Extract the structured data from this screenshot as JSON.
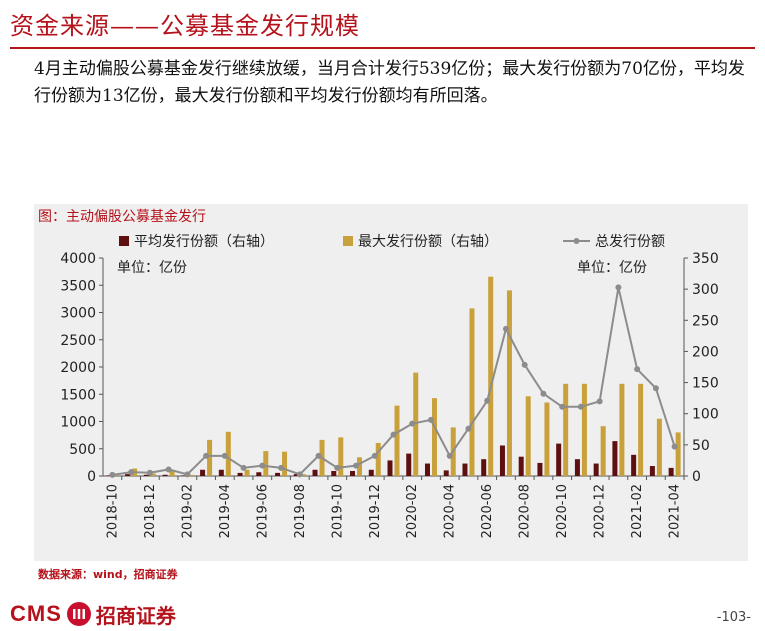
{
  "header": {
    "title": "资金来源——公募基金发行规模",
    "description": "4月主动偏股公募基金发行继续放缓，当月合计发行539亿份；最大发行份额为70亿份，平均发行份额为13亿份，最大发行份额和平均发行份额均有所回落。"
  },
  "figure": {
    "title": "图：主动偏股公募基金发行",
    "source": "数据来源：wind，招商证券"
  },
  "footer": {
    "logo_text": "CMS",
    "logo_mark": "111",
    "logo_cn": "招商证券",
    "page_number": "-103-"
  },
  "colors": {
    "accent": "#b5121b",
    "avg_bar": "#5e0f10",
    "max_bar": "#c9a13c",
    "total_line": "#8c8c8c"
  },
  "chart_data": {
    "type": "bar",
    "unit_left": "单位：亿份",
    "unit_right": "单位：亿份",
    "legend": [
      {
        "name": "平均发行份额（右轴）",
        "kind": "bar",
        "color": "#5e0f10"
      },
      {
        "name": "最大发行份额（右轴）",
        "kind": "bar",
        "color": "#c9a13c"
      },
      {
        "name": "总发行份额",
        "kind": "line",
        "color": "#8c8c8c"
      }
    ],
    "left_axis": {
      "min": 0,
      "max": 4000,
      "ticks": [
        "0",
        "500",
        "1000",
        "1500",
        "2000",
        "2500",
        "3000",
        "3500",
        "4000"
      ]
    },
    "right_axis": {
      "min": 0,
      "max": 350,
      "ticks": [
        "0",
        "50",
        "100",
        "150",
        "200",
        "250",
        "300",
        "350"
      ]
    },
    "x_tick_labels": [
      "2018-10",
      "2018-12",
      "2019-02",
      "2019-04",
      "2019-06",
      "2019-08",
      "2019-10",
      "2019-12",
      "2020-02",
      "2020-04",
      "2020-06",
      "2020-08",
      "2020-10",
      "2020-12",
      "2021-02",
      "2021-04"
    ],
    "categories": [
      "2018-10",
      "2018-11",
      "2018-12",
      "2019-01",
      "2019-02",
      "2019-03",
      "2019-04",
      "2019-05",
      "2019-06",
      "2019-07",
      "2019-08",
      "2019-09",
      "2019-10",
      "2019-11",
      "2019-12",
      "2020-01",
      "2020-02",
      "2020-03",
      "2020-04",
      "2020-05",
      "2020-06",
      "2020-07",
      "2020-08",
      "2020-09",
      "2020-10",
      "2020-11",
      "2020-12",
      "2021-01",
      "2021-02",
      "2021-03",
      "2021-04"
    ],
    "series": [
      {
        "name": "平均发行份额（右轴）",
        "axis": "right",
        "values": [
          1,
          3,
          2,
          2,
          1,
          10,
          10,
          5,
          6,
          5,
          3,
          10,
          8,
          8,
          10,
          25,
          36,
          20,
          9,
          20,
          27,
          49,
          31,
          21,
          52,
          27,
          20,
          56,
          34,
          16,
          13
        ]
      },
      {
        "name": "最大发行份额（右轴）",
        "axis": "right",
        "values": [
          2,
          12,
          4,
          8,
          2,
          58,
          71,
          10,
          40,
          39,
          3,
          58,
          62,
          30,
          53,
          113,
          166,
          125,
          78,
          269,
          320,
          298,
          128,
          118,
          148,
          148,
          80,
          148,
          148,
          92,
          70
        ]
      },
      {
        "name": "总发行份额",
        "axis": "left",
        "values": [
          20,
          70,
          60,
          120,
          30,
          370,
          370,
          150,
          190,
          150,
          30,
          370,
          150,
          190,
          370,
          760,
          960,
          1030,
          370,
          870,
          1380,
          2700,
          2040,
          1510,
          1270,
          1270,
          1370,
          3460,
          1960,
          1610,
          539
        ]
      }
    ]
  }
}
